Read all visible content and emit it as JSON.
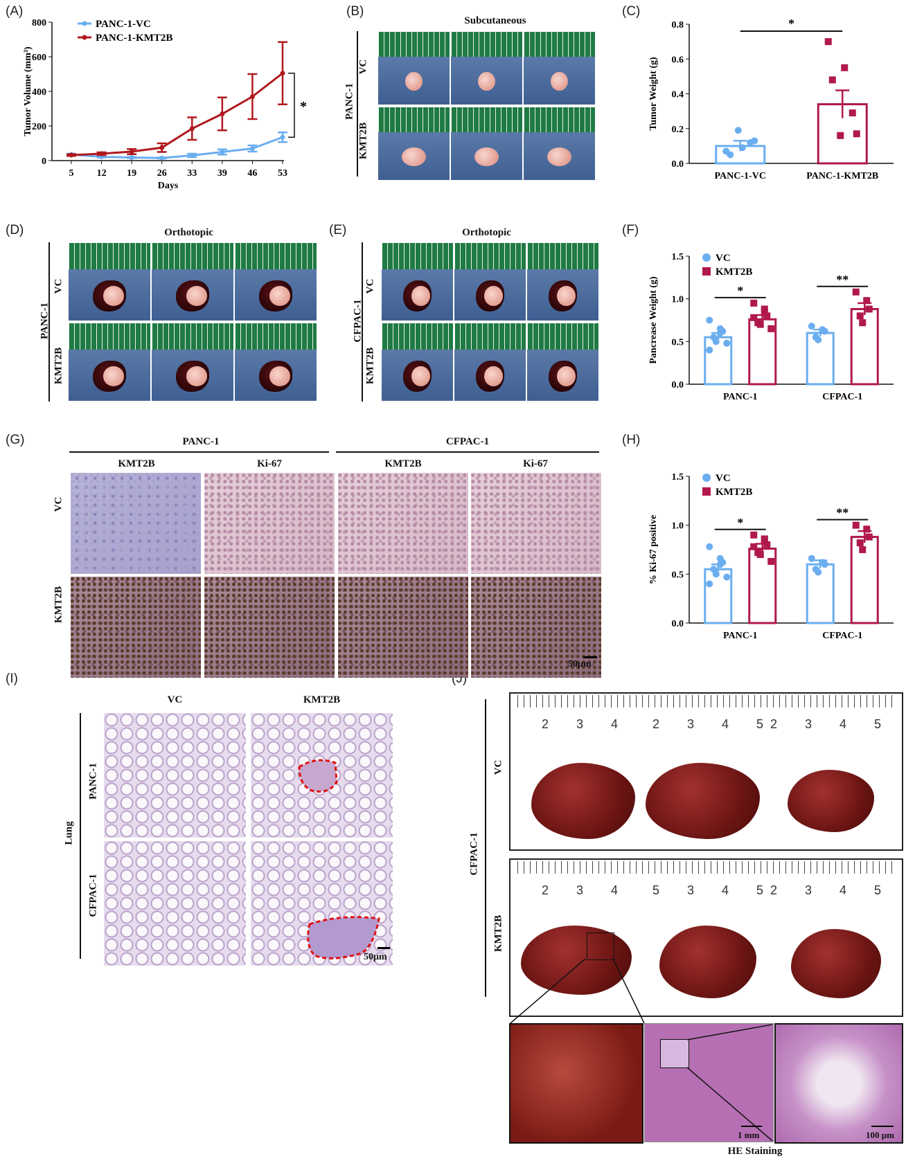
{
  "panels": {
    "A": "(A)",
    "B": "(B)",
    "C": "(C)",
    "D": "(D)",
    "E": "(E)",
    "F": "(F)",
    "G": "(G)",
    "H": "(H)",
    "I": "(I)",
    "J": "(J)"
  },
  "panel_b": {
    "title": "Subcutaneous",
    "group": "PANC-1",
    "row_vc": "VC",
    "row_kmt": "KMT2B"
  },
  "panel_d": {
    "title": "Orthotopic",
    "group": "PANC-1",
    "row_vc": "VC",
    "row_kmt": "KMT2B"
  },
  "panel_e": {
    "title": "Orthotopic",
    "group": "CFPAC-1",
    "row_vc": "VC",
    "row_kmt": "KMT2B"
  },
  "panel_g": {
    "group1": "PANC-1",
    "group2": "CFPAC-1",
    "col1": "KMT2B",
    "col2": "Ki-67",
    "col3": "KMT2B",
    "col4": "Ki-67",
    "row_vc": "VC",
    "row_kmt": "KMT2B",
    "scale": "50μm"
  },
  "panel_i": {
    "col_vc": "VC",
    "col_kmt": "KMT2B",
    "tissue": "Lung",
    "row1": "PANC-1",
    "row2": "CFPAC-1",
    "scale": "50μm"
  },
  "panel_j": {
    "group": "CFPAC-1",
    "row_vc": "VC",
    "row_kmt": "KMT2B",
    "ruler_top": [
      "2",
      "3",
      "4",
      "2",
      "3",
      "4",
      "5",
      "2",
      "3",
      "4",
      "5"
    ],
    "ruler_bottom": [
      "2",
      "3",
      "4",
      "5",
      "3",
      "4",
      "5",
      "2",
      "3",
      "4",
      "5"
    ],
    "scale1": "1 mm",
    "scale2": "100 μm",
    "caption": "HE Staining"
  },
  "chart_data": [
    {
      "id": "A",
      "type": "line",
      "x": [
        5,
        12,
        19,
        26,
        33,
        39,
        46,
        53
      ],
      "xlabel": "Days",
      "ylabel": "Tumor Volume (mm³)",
      "ylim": [
        0,
        800
      ],
      "yticks": [
        0,
        200,
        400,
        600,
        800
      ],
      "series": [
        {
          "name": "PANC-1-VC",
          "color": "#6aaef0",
          "values": [
            35,
            22,
            18,
            15,
            30,
            50,
            70,
            135
          ],
          "err": [
            5,
            4,
            3,
            3,
            10,
            15,
            18,
            28
          ]
        },
        {
          "name": "PANC-1-KMT2B",
          "color": "#b0191e",
          "values": [
            32,
            40,
            52,
            75,
            185,
            270,
            370,
            505
          ],
          "err": [
            5,
            8,
            15,
            25,
            65,
            95,
            130,
            180
          ]
        }
      ],
      "significance": "*"
    },
    {
      "id": "C",
      "type": "bar",
      "categories": [
        "PANC-1-VC",
        "PANC-1-KMT2B"
      ],
      "values": [
        0.1,
        0.34
      ],
      "err": [
        0.03,
        0.08
      ],
      "points": [
        [
          0.07,
          0.09,
          0.12,
          0.05,
          0.19,
          0.13
        ],
        [
          0.7,
          0.55,
          0.29,
          0.48,
          0.16,
          0.17
        ]
      ],
      "colors": [
        "#6aaef0",
        "#b0194a"
      ],
      "ylabel": "Tumor Weight (g)",
      "ylim": [
        0,
        0.8
      ],
      "yticks": [
        0.0,
        0.2,
        0.4,
        0.6,
        0.8
      ],
      "significance": "*"
    },
    {
      "id": "F",
      "type": "bar",
      "categories": [
        "PANC-1",
        "CFPAC-1"
      ],
      "series": [
        {
          "name": "VC",
          "color": "#6aaef0",
          "values": [
            0.55,
            0.6
          ],
          "err": [
            0.05,
            0.04
          ],
          "points": [
            [
              0.75,
              0.65,
              0.62,
              0.55,
              0.5,
              0.48,
              0.4,
              0.6
            ],
            [
              0.68,
              0.64,
              0.62,
              0.55,
              0.52
            ]
          ]
        },
        {
          "name": "KMT2B",
          "color": "#b0194a",
          "values": [
            0.76,
            0.88
          ],
          "err": [
            0.05,
            0.07
          ],
          "points": [
            [
              0.95,
              0.85,
              0.8,
              0.72,
              0.7,
              0.65,
              0.78,
              0.88
            ],
            [
              1.08,
              0.98,
              0.88,
              0.8,
              0.72
            ]
          ]
        }
      ],
      "ylabel": "Pancrease Weight (g)",
      "ylim": [
        0,
        1.5
      ],
      "yticks": [
        0.0,
        0.5,
        1.0,
        1.5
      ],
      "significance": [
        "*",
        "**"
      ]
    },
    {
      "id": "H",
      "type": "bar",
      "categories": [
        "PANC-1",
        "CFPAC-1"
      ],
      "series": [
        {
          "name": "VC",
          "color": "#6aaef0",
          "values": [
            0.55,
            0.6
          ],
          "err": [
            0.05,
            0.04
          ],
          "points": [
            [
              0.78,
              0.66,
              0.62,
              0.55,
              0.5,
              0.47,
              0.4,
              0.6
            ],
            [
              0.66,
              0.62,
              0.6,
              0.55,
              0.52
            ]
          ]
        },
        {
          "name": "KMT2B",
          "color": "#b0194a",
          "values": [
            0.76,
            0.88
          ],
          "err": [
            0.05,
            0.06
          ],
          "points": [
            [
              0.9,
              0.85,
              0.8,
              0.72,
              0.7,
              0.63,
              0.78,
              0.86
            ],
            [
              1.0,
              0.96,
              0.88,
              0.82,
              0.75
            ]
          ]
        }
      ],
      "ylabel": "% Ki-67 positive",
      "ylim": [
        0,
        1.5
      ],
      "yticks": [
        0.0,
        0.5,
        1.0,
        1.5
      ],
      "significance": [
        "*",
        "**"
      ]
    }
  ]
}
